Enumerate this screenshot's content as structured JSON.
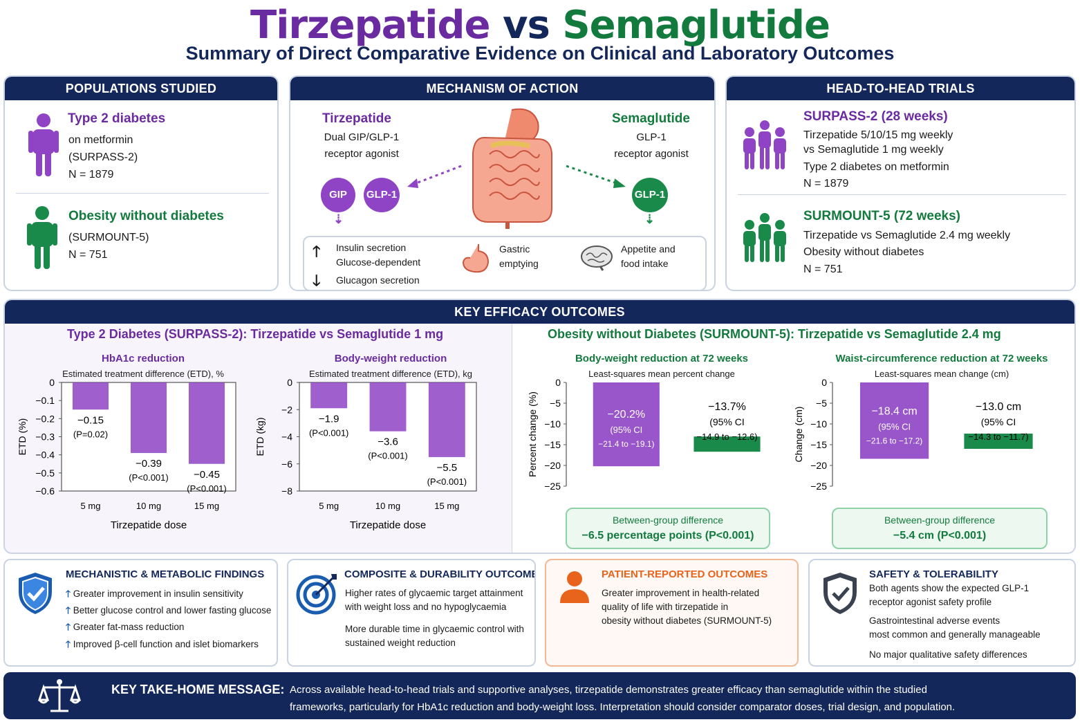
{
  "title": {
    "drug_a": "Tirzepatide",
    "vs": "vs",
    "drug_b": "Semaglutide",
    "subtitle": "Summary of Direct Comparative Evidence on Clinical and Laboratory Outcomes"
  },
  "colors": {
    "purple": "#8e44c4",
    "green": "#1a8a4a",
    "navy": "#14275a",
    "orange": "#e8641c"
  },
  "populations": {
    "header": "POPULATIONS STUDIED",
    "groups": [
      {
        "title": "Type 2 diabetes",
        "lines": [
          "on metformin",
          "(SURPASS-2)",
          "N = 1879"
        ],
        "icon": "person-icon"
      },
      {
        "title": "Obesity without diabetes",
        "lines": [
          "(SURMOUNT-5)",
          "N = 751"
        ],
        "icon": "person-icon"
      }
    ]
  },
  "mechanism": {
    "header": "MECHANISM OF ACTION",
    "tirz_name": "Tirzepatide",
    "tirz_desc": [
      "Dual GIP/GLP-1",
      "receptor agonist"
    ],
    "sema_name": "Semaglutide",
    "sema_desc": [
      "GLP-1",
      "receptor agonist"
    ],
    "receptors": {
      "gip": "GIP",
      "glp1_a": "GLP-1",
      "glp1_b": "GLP-1"
    },
    "effects": {
      "insulin": "Insulin secretion",
      "glucose": "Glucose-dependent",
      "glucagon": "Glucagon secretion",
      "gastric": [
        "Gastric",
        "emptying"
      ],
      "appetite": [
        "Appetite and",
        "food intake"
      ]
    },
    "icons": [
      "gut-icon",
      "stomach-icon",
      "brain-icon",
      "arrow-up-icon",
      "arrow-down-icon"
    ]
  },
  "trials": {
    "header": "HEAD-TO-HEAD TRIALS",
    "items": [
      {
        "title": "SURPASS-2  (28 weeks)",
        "lines": [
          "Tirzepatide 5/10/15 mg weekly",
          "vs Semaglutide 1 mg weekly",
          "Type 2 diabetes on metformin",
          "N = 1879"
        ],
        "icon": "group-icon"
      },
      {
        "title": "SURMOUNT-5 (72 weeks)",
        "lines": [
          "Tirzepatide vs Semaglutide 2.4 mg weekly",
          "Obesity without diabetes",
          "N = 751"
        ],
        "icon": "group-icon"
      }
    ]
  },
  "efficacy": {
    "header": "KEY EFFICACY OUTCOMES",
    "left_title": "Type 2 Diabetes (SURPASS-2): Tirzepatide vs Semaglutide 1 mg",
    "right_title": "Obesity without Diabetes (SURMOUNT-5): Tirzepatide vs Semaglutide 2.4 mg"
  },
  "chart_data": [
    {
      "type": "bar",
      "title": "HbA1c reduction",
      "subtitle": "Estimated treatment difference (ETD), %",
      "ylabel": "ETD (%)",
      "xlabel": "Tirzepatide dose",
      "categories": [
        "5 mg",
        "10 mg",
        "15 mg"
      ],
      "values": [
        -0.15,
        -0.39,
        -0.45
      ],
      "value_labels": [
        "−0.15",
        "−0.39",
        "−0.45"
      ],
      "p_labels": [
        "(P=0.02)",
        "(P<0.001)",
        "(P<0.001)"
      ],
      "ylim": [
        -0.6,
        0
      ],
      "yticks": [
        0,
        -0.1,
        -0.2,
        -0.3,
        -0.4,
        -0.5,
        -0.6
      ],
      "ytick_labels": [
        "0",
        "−0.1",
        "−0.2",
        "−0.3",
        "−0.4",
        "−0.5",
        "−0.6"
      ]
    },
    {
      "type": "bar",
      "title": "Body-weight reduction",
      "subtitle": "Estimated treatment difference (ETD), kg",
      "ylabel": "ETD (kg)",
      "xlabel": "Tirzepatide dose",
      "categories": [
        "5 mg",
        "10 mg",
        "15 mg"
      ],
      "values": [
        -1.9,
        -3.6,
        -5.5
      ],
      "value_labels": [
        "−1.9",
        "−3.6",
        "−5.5"
      ],
      "p_labels": [
        "(P<0.001)",
        "(P<0.001)",
        "(P<0.001)"
      ],
      "ylim": [
        -8,
        0
      ],
      "yticks": [
        0,
        -2,
        -4,
        -6,
        -8
      ],
      "ytick_labels": [
        "0",
        "−2",
        "−4",
        "−6",
        "−8"
      ]
    },
    {
      "type": "bar",
      "title": "Body-weight reduction at 72 weeks",
      "subtitle": "Least-squares mean percent change",
      "ylabel": "Percent change (%)",
      "xlabel": "",
      "series": [
        {
          "name": "Tirzepatide",
          "value": -20.2,
          "label": [
            "−20.2%",
            "(95%  CI",
            "−21.4 to −19.1)"
          ]
        },
        {
          "name": "Semaglutide",
          "value": -13.7,
          "label": [
            "−13.7%",
            "(95%  CI",
            "−14.9 to −12.6)"
          ]
        }
      ],
      "ylim": [
        -25,
        0
      ],
      "yticks": [
        0,
        -5,
        -10,
        -15,
        -20,
        -25
      ],
      "ytick_labels": [
        "0",
        "−5",
        "−10",
        "−15",
        "−20",
        "−25"
      ],
      "between_group": [
        "Between-group difference",
        "−6.5 percentage points (P<0.001)"
      ]
    },
    {
      "type": "bar",
      "title": "Waist-circumference reduction at 72 weeks",
      "subtitle": "Least-squares mean change (cm)",
      "ylabel": "Change (cm)",
      "xlabel": "",
      "series": [
        {
          "name": "Tirzepatide",
          "value": -18.4,
          "label": [
            "−18.4 cm",
            "(95%  CI",
            "−21.6 to −17.2)"
          ]
        },
        {
          "name": "Semaglutide",
          "value": -13.0,
          "label": [
            "−13.0 cm",
            "(95%  CI",
            "−14.3 to −11.7)"
          ]
        }
      ],
      "ylim": [
        -25,
        0
      ],
      "yticks": [
        0,
        -5,
        -10,
        -15,
        -20,
        -25
      ],
      "ytick_labels": [
        "0",
        "−5",
        "−10",
        "−15",
        "−20",
        "−25"
      ],
      "between_group": [
        "Between-group difference",
        "−5.4 cm (P<0.001)"
      ]
    }
  ],
  "cards": [
    {
      "title": "MECHANISTIC & METABOLIC FINDINGS",
      "icon": "shield-check-icon",
      "lines": [
        "Greater improvement in insulin sensitivity",
        "Better glucose control and lower fasting glucose",
        "Greater fat-mass reduction",
        "Improved β-cell function and islet biomarkers"
      ]
    },
    {
      "title": "COMPOSITE & DURABILITY OUTCOMES",
      "icon": "target-icon",
      "lines": [
        "Higher rates of glycaemic target attainment",
        "with weight loss and no hypoglycaemia",
        "More durable time in glycaemic control with",
        "sustained weight reduction"
      ]
    },
    {
      "title": "PATIENT-REPORTED OUTCOMES",
      "icon": "person-icon",
      "lines": [
        "Greater improvement in health-related",
        "quality of life with tirzepatide in",
        "obesity without diabetes (SURMOUNT-5)"
      ]
    },
    {
      "title": "SAFETY & TOLERABILITY",
      "icon": "shield-check-icon",
      "lines": [
        "Both agents show the expected GLP-1",
        "receptor agonist safety profile",
        "Gastrointestinal adverse events",
        "most common and generally manageable",
        "No major qualitative safety differences"
      ]
    }
  ],
  "takehome": {
    "label": "KEY TAKE-HOME MESSAGE:",
    "line1": "Across available head-to-head trials and supportive analyses, tirzepatide demonstrates greater efficacy than semaglutide within the studied",
    "line2": "frameworks, particularly for HbA1c reduction and body-weight loss. Interpretation should consider comparator doses, trial design, and population.",
    "icon": "scales-icon"
  }
}
